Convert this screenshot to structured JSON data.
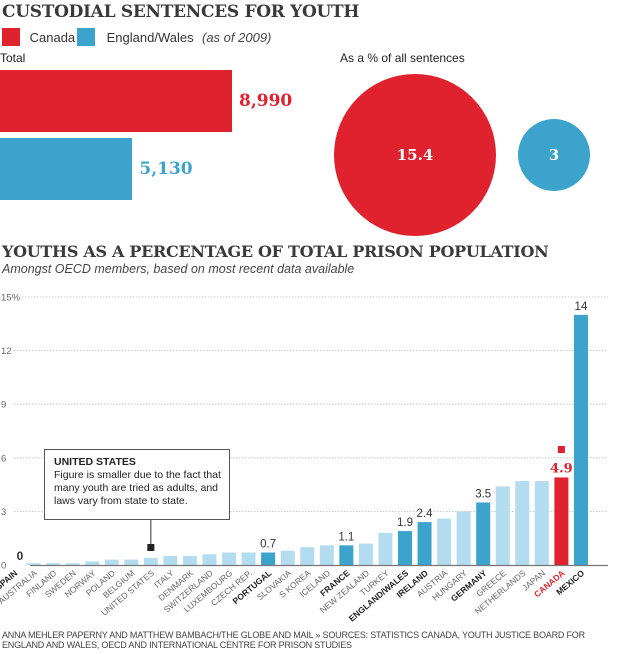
{
  "colors": {
    "canada": "#e0222f",
    "england_wales": "#3ba3cc",
    "highlight": "#3ba3cc",
    "other": "#b4dcf0",
    "axis": "#777777",
    "grid": "#bbbbbb"
  },
  "section1": {
    "title": "CUSTODIAL SENTENCES FOR YOUTH",
    "legend": [
      {
        "label": "Canada",
        "color": "#e0222f"
      },
      {
        "label": "England/Wales",
        "color": "#3ba3cc"
      }
    ],
    "legend_note": "(as of 2009)",
    "total_label": "Total",
    "pct_label": "As a % of all sentences"
  },
  "section2": {
    "title": "YOUTHS AS A PERCENTAGE OF TOTAL PRISON POPULATION",
    "subtitle": "Amongst OECD members, based on most recent data available",
    "annotation": {
      "heading": "UNITED STATES",
      "text": "Figure is smaller due to the fact that many youth are tried as adults, and laws vary from state to state."
    }
  },
  "footer": "ANNA MEHLER PAPERNY AND MATTHEW BAMBACH/THE GLOBE AND MAIL » SOURCES: STATISTICS CANADA, YOUTH JUSTICE BOARD FOR ENGLAND AND WALES, OECD AND INTERNATIONAL CENTRE FOR PRISON STUDIES",
  "chart_data": [
    {
      "type": "bar",
      "orientation": "horizontal",
      "title": "Total",
      "categories": [
        "Canada",
        "England/Wales"
      ],
      "values": [
        8990,
        5130
      ],
      "labels": [
        "8,990",
        "5,130"
      ]
    },
    {
      "type": "bubble",
      "title": "As a % of all sentences",
      "categories": [
        "Canada",
        "England/Wales"
      ],
      "values": [
        15.4,
        3
      ],
      "labels": [
        "15.4",
        "3"
      ]
    },
    {
      "type": "bar",
      "title": "YOUTHS AS A PERCENTAGE OF TOTAL PRISON POPULATION",
      "subtitle": "Amongst OECD members, based on most recent data available",
      "xlabel": "",
      "ylabel": "",
      "ylim": [
        0,
        15
      ],
      "yticks": [
        0,
        3,
        6,
        9,
        12,
        15
      ],
      "ytick_labels": [
        "0",
        "3",
        "6",
        "9",
        "12",
        "15%"
      ],
      "grid": true,
      "categories": [
        "SPAIN",
        "AUSTRALIA",
        "FINLAND",
        "SWEDEN",
        "NORWAY",
        "POLAND",
        "BELGIUM",
        "UNITED STATES",
        "ITALY",
        "DENMARK",
        "SWITZERLAND",
        "LUXEMBOURG",
        "CZECH REP.",
        "PORTUGAL",
        "SLOVAKIA",
        "S KOREA",
        "ICELAND",
        "FRANCE",
        "NEW ZEALAND",
        "TURKEY",
        "ENGLAND/WALES",
        "IRELAND",
        "AUSTRIA",
        "HUNGARY",
        "GERMANY",
        "GREECE",
        "NETHERLANDS",
        "JAPAN",
        "CANADA",
        "MEXICO"
      ],
      "values": [
        0,
        0.1,
        0.1,
        0.1,
        0.2,
        0.3,
        0.3,
        0.4,
        0.5,
        0.5,
        0.6,
        0.7,
        0.7,
        0.7,
        0.8,
        1.0,
        1.1,
        1.1,
        1.2,
        1.8,
        1.9,
        2.4,
        2.6,
        3.0,
        3.5,
        4.4,
        4.7,
        4.7,
        4.9,
        14
      ],
      "emphasis": [
        "normal",
        "normal",
        "normal",
        "normal",
        "normal",
        "normal",
        "normal",
        "normal",
        "normal",
        "normal",
        "normal",
        "normal",
        "normal",
        "highlight",
        "normal",
        "normal",
        "normal",
        "highlight",
        "normal",
        "normal",
        "highlight",
        "highlight",
        "normal",
        "normal",
        "highlight",
        "normal",
        "normal",
        "normal",
        "canada",
        "highlight"
      ],
      "data_labels": {
        "SPAIN": "0",
        "PORTUGAL": "0.7",
        "FRANCE": "1.1",
        "ENGLAND/WALES": "1.9",
        "IRELAND": "2.4",
        "GERMANY": "3.5",
        "CANADA": "4.9",
        "MEXICO": "14"
      },
      "annotation_target": "UNITED STATES"
    }
  ]
}
